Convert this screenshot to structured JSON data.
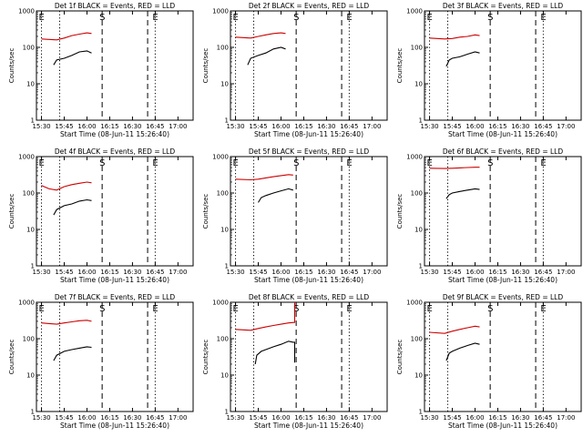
{
  "x_tick_labels": [
    "15:30",
    "15:45",
    "16:00",
    "16:15",
    "16:30",
    "16:45",
    "17:00"
  ],
  "y_tick_labels": [
    "1",
    "10",
    "100",
    "1000"
  ],
  "ylabel": "Counts/sec",
  "xlabel": "Start Time (08-Jun-11 15:26:40)",
  "markers": [
    {
      "label": "E",
      "time": "15:30",
      "style": "dotted"
    },
    {
      "label": "",
      "time": "15:42",
      "style": "dotted"
    },
    {
      "label": "S",
      "time": "16:10",
      "style": "dashed"
    },
    {
      "label": "",
      "time": "16:40",
      "style": "dashed"
    },
    {
      "label": "E",
      "time": "16:45",
      "style": "dotted"
    }
  ],
  "colors": {
    "events": "#000000",
    "lld": "#cc0000"
  },
  "chart_data": [
    {
      "type": "line",
      "title": "Det 1f BLACK = Events, RED = LLD",
      "x_range": [
        "15:26:40",
        "17:10"
      ],
      "ylim": [
        1,
        1000
      ],
      "yscale": "log",
      "series": [
        {
          "name": "LLD",
          "x": [
            "15:30",
            "15:40",
            "15:45",
            "15:50",
            "15:55",
            "16:00",
            "16:03"
          ],
          "values": [
            170,
            160,
            180,
            210,
            230,
            250,
            240
          ]
        },
        {
          "name": "Events",
          "x": [
            "15:38",
            "15:40",
            "15:45",
            "15:50",
            "15:55",
            "16:00",
            "16:03"
          ],
          "values": [
            33,
            45,
            50,
            60,
            75,
            80,
            70
          ]
        }
      ]
    },
    {
      "type": "line",
      "title": "Det 2f BLACK = Events, RED = LLD",
      "x_range": [
        "15:26:40",
        "17:10"
      ],
      "ylim": [
        1,
        1000
      ],
      "yscale": "log",
      "series": [
        {
          "name": "LLD",
          "x": [
            "15:30",
            "15:40",
            "15:45",
            "15:50",
            "15:55",
            "16:00",
            "16:03"
          ],
          "values": [
            190,
            180,
            200,
            220,
            240,
            250,
            240
          ]
        },
        {
          "name": "Events",
          "x": [
            "15:38",
            "15:40",
            "15:45",
            "15:50",
            "15:55",
            "16:00",
            "16:03"
          ],
          "values": [
            33,
            50,
            60,
            70,
            90,
            100,
            90
          ]
        }
      ]
    },
    {
      "type": "line",
      "title": "Det 3f BLACK = Events, RED = LLD",
      "x_range": [
        "15:26:40",
        "17:10"
      ],
      "ylim": [
        1,
        1000
      ],
      "yscale": "log",
      "series": [
        {
          "name": "LLD",
          "x": [
            "15:30",
            "15:40",
            "15:45",
            "15:50",
            "15:55",
            "16:00",
            "16:03"
          ],
          "values": [
            180,
            170,
            175,
            190,
            200,
            220,
            210
          ]
        },
        {
          "name": "Events",
          "x": [
            "15:41",
            "15:43",
            "15:45",
            "15:50",
            "15:55",
            "16:00",
            "16:03"
          ],
          "values": [
            30,
            45,
            50,
            55,
            65,
            75,
            70
          ]
        }
      ]
    },
    {
      "type": "line",
      "title": "Det 4f BLACK = Events, RED = LLD",
      "x_range": [
        "15:26:40",
        "17:10"
      ],
      "ylim": [
        1,
        1000
      ],
      "yscale": "log",
      "series": [
        {
          "name": "LLD",
          "x": [
            "15:30",
            "15:35",
            "15:40",
            "15:45",
            "15:50",
            "15:55",
            "16:00",
            "16:03"
          ],
          "values": [
            160,
            130,
            120,
            150,
            170,
            185,
            200,
            190
          ]
        },
        {
          "name": "Events",
          "x": [
            "15:38",
            "15:40",
            "15:45",
            "15:50",
            "15:55",
            "16:00",
            "16:03"
          ],
          "values": [
            25,
            35,
            45,
            50,
            60,
            65,
            62
          ]
        }
      ]
    },
    {
      "type": "line",
      "title": "Det 5f BLACK = Events, RED = LLD",
      "x_range": [
        "15:26:40",
        "17:10"
      ],
      "ylim": [
        1,
        1000
      ],
      "yscale": "log",
      "series": [
        {
          "name": "LLD",
          "x": [
            "15:30",
            "15:40",
            "15:45",
            "15:50",
            "15:55",
            "16:00",
            "16:05",
            "16:08"
          ],
          "values": [
            240,
            230,
            240,
            260,
            280,
            300,
            320,
            310
          ]
        },
        {
          "name": "Events",
          "x": [
            "15:45",
            "15:47",
            "15:50",
            "15:55",
            "16:00",
            "16:05",
            "16:08"
          ],
          "values": [
            55,
            75,
            85,
            100,
            115,
            130,
            120
          ]
        }
      ]
    },
    {
      "type": "line",
      "title": "Det 6f BLACK = Events, RED = LLD",
      "x_range": [
        "15:26:40",
        "17:10"
      ],
      "ylim": [
        1,
        1000
      ],
      "yscale": "log",
      "series": [
        {
          "name": "LLD",
          "x": [
            "15:30",
            "15:40",
            "15:45",
            "15:50",
            "15:55",
            "16:00",
            "16:03"
          ],
          "values": [
            480,
            470,
            480,
            490,
            500,
            510,
            510
          ]
        },
        {
          "name": "Events",
          "x": [
            "15:41",
            "15:43",
            "15:45",
            "15:50",
            "15:55",
            "16:00",
            "16:03"
          ],
          "values": [
            70,
            90,
            100,
            110,
            120,
            130,
            125
          ]
        }
      ]
    },
    {
      "type": "line",
      "title": "Det 7f BLACK = Events, RED = LLD",
      "x_range": [
        "15:26:40",
        "17:10"
      ],
      "ylim": [
        1,
        1000
      ],
      "yscale": "log",
      "series": [
        {
          "name": "LLD",
          "x": [
            "15:30",
            "15:35",
            "15:40",
            "15:45",
            "15:50",
            "15:55",
            "16:00",
            "16:03"
          ],
          "values": [
            270,
            260,
            250,
            270,
            290,
            310,
            320,
            300
          ]
        },
        {
          "name": "Events",
          "x": [
            "15:38",
            "15:40",
            "15:45",
            "15:50",
            "15:55",
            "16:00",
            "16:03"
          ],
          "values": [
            25,
            35,
            45,
            50,
            55,
            60,
            58
          ]
        }
      ]
    },
    {
      "type": "line",
      "title": "Det 8f BLACK = Events, RED = LLD",
      "x_range": [
        "15:26:40",
        "17:10"
      ],
      "ylim": [
        1,
        1000
      ],
      "yscale": "log",
      "series": [
        {
          "name": "LLD",
          "x": [
            "15:30",
            "15:40",
            "15:45",
            "15:50",
            "15:55",
            "16:00",
            "16:05",
            "16:09",
            "16:09"
          ],
          "values": [
            180,
            170,
            190,
            210,
            230,
            250,
            270,
            280,
            1000
          ]
        },
        {
          "name": "Events",
          "x": [
            "15:43",
            "15:44",
            "15:47",
            "15:50",
            "15:55",
            "16:00",
            "16:05",
            "16:08",
            "16:09",
            "16:09"
          ],
          "values": [
            20,
            35,
            45,
            50,
            60,
            70,
            85,
            80,
            80,
            22
          ]
        }
      ]
    },
    {
      "type": "line",
      "title": "Det 9f BLACK = Events, RED = LLD",
      "x_range": [
        "15:26:40",
        "17:10"
      ],
      "ylim": [
        1,
        1000
      ],
      "yscale": "log",
      "series": [
        {
          "name": "LLD",
          "x": [
            "15:30",
            "15:40",
            "15:45",
            "15:50",
            "15:55",
            "16:00",
            "16:03"
          ],
          "values": [
            150,
            140,
            160,
            180,
            200,
            220,
            210
          ]
        },
        {
          "name": "Events",
          "x": [
            "15:41",
            "15:43",
            "15:45",
            "15:50",
            "15:55",
            "16:00",
            "16:03"
          ],
          "values": [
            25,
            40,
            45,
            55,
            65,
            75,
            70
          ]
        }
      ]
    }
  ]
}
